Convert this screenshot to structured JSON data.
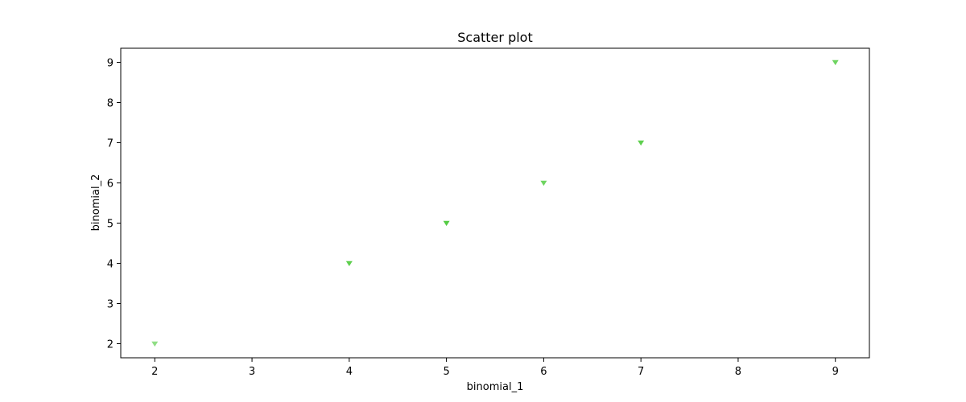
{
  "chart_data": {
    "type": "scatter",
    "title": "Scatter plot",
    "xlabel": "binomial_1",
    "ylabel": "binomial_2",
    "xlim": [
      1.65,
      9.35
    ],
    "ylim": [
      1.65,
      9.35
    ],
    "xticks": [
      2,
      3,
      4,
      5,
      6,
      7,
      8,
      9
    ],
    "yticks": [
      2,
      3,
      4,
      5,
      6,
      7,
      8,
      9
    ],
    "grid": false,
    "marker": "triangle-down",
    "marker_color": "#55cc44",
    "points": [
      {
        "x": 2,
        "y": 2,
        "opacity": 0.65
      },
      {
        "x": 4,
        "y": 4,
        "opacity": 0.95
      },
      {
        "x": 5,
        "y": 5,
        "opacity": 1.0
      },
      {
        "x": 6,
        "y": 6,
        "opacity": 0.85
      },
      {
        "x": 7,
        "y": 7,
        "opacity": 0.95
      },
      {
        "x": 9,
        "y": 9,
        "opacity": 0.85
      }
    ]
  }
}
